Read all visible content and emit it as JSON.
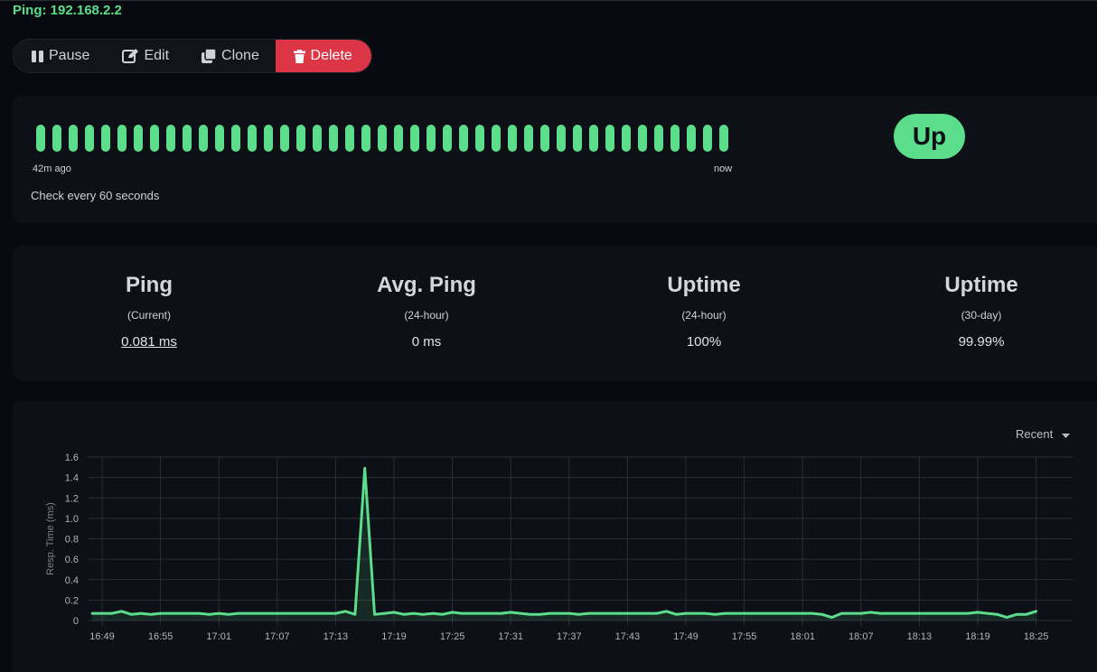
{
  "monitor": {
    "title": "Ping: 192.168.2.2",
    "status": "Up"
  },
  "actions": {
    "pause": "Pause",
    "edit": "Edit",
    "clone": "Clone",
    "delete": "Delete"
  },
  "heartbeat": {
    "count": 43,
    "color": "#5cdd8b",
    "start_label": "42m ago",
    "end_label": "now",
    "interval_text": "Check every 60 seconds"
  },
  "stats": [
    {
      "title": "Ping",
      "sub": "(Current)",
      "value": "0.081 ms"
    },
    {
      "title": "Avg. Ping",
      "sub": "(24-hour)",
      "value": "0 ms"
    },
    {
      "title": "Uptime",
      "sub": "(24-hour)",
      "value": "100%"
    },
    {
      "title": "Uptime",
      "sub": "(30-day)",
      "value": "99.99%"
    }
  ],
  "chart_controls": {
    "period": "Recent"
  },
  "chart_data": {
    "type": "line",
    "ylabel": "Resp. Time (ms)",
    "xlabel": "",
    "ylim": [
      0,
      1.6
    ],
    "yticks": [
      "0",
      "0.2",
      "0.4",
      "0.6",
      "0.8",
      "1.0",
      "1.2",
      "1.4",
      "1.6"
    ],
    "xticks": [
      "16:49",
      "16:55",
      "17:01",
      "17:07",
      "17:13",
      "17:19",
      "17:25",
      "17:31",
      "17:37",
      "17:43",
      "17:49",
      "17:55",
      "18:01",
      "18:07",
      "18:13",
      "18:19",
      "18:25"
    ],
    "grid": true,
    "series": [
      {
        "color": "#5cdd8b",
        "x_minutes": [
          0,
          1,
          2,
          3,
          4,
          5,
          6,
          7,
          8,
          9,
          10,
          11,
          12,
          13,
          14,
          15,
          16,
          17,
          18,
          19,
          20,
          21,
          22,
          23,
          24,
          25,
          26,
          27,
          28,
          29,
          30,
          31,
          32,
          33,
          34,
          35,
          36,
          37,
          38,
          39,
          40,
          41,
          42,
          43,
          44,
          45,
          46,
          47,
          48,
          49,
          50,
          51,
          52,
          53,
          54,
          55,
          56,
          57,
          58,
          59,
          60,
          61,
          62,
          63,
          64,
          65,
          66,
          67,
          68,
          69,
          70,
          71,
          72,
          73,
          74,
          75,
          76,
          77,
          78,
          79,
          80,
          81,
          82,
          83,
          84,
          85,
          86,
          87,
          88,
          89,
          90,
          91,
          92,
          93,
          94,
          95,
          96,
          97
        ],
        "values": [
          0.07,
          0.07,
          0.07,
          0.09,
          0.06,
          0.07,
          0.06,
          0.07,
          0.07,
          0.07,
          0.07,
          0.07,
          0.06,
          0.07,
          0.06,
          0.07,
          0.07,
          0.07,
          0.07,
          0.07,
          0.07,
          0.07,
          0.07,
          0.07,
          0.07,
          0.07,
          0.09,
          0.06,
          1.49,
          0.06,
          0.07,
          0.08,
          0.06,
          0.07,
          0.06,
          0.07,
          0.06,
          0.08,
          0.07,
          0.07,
          0.07,
          0.07,
          0.07,
          0.08,
          0.07,
          0.06,
          0.06,
          0.07,
          0.07,
          0.07,
          0.06,
          0.07,
          0.07,
          0.07,
          0.07,
          0.07,
          0.07,
          0.07,
          0.07,
          0.09,
          0.06,
          0.07,
          0.07,
          0.07,
          0.06,
          0.07,
          0.07,
          0.07,
          0.07,
          0.07,
          0.07,
          0.07,
          0.07,
          0.07,
          0.07,
          0.06,
          0.03,
          0.07,
          0.07,
          0.07,
          0.08,
          0.07,
          0.07,
          0.07,
          0.07,
          0.07,
          0.07,
          0.07,
          0.07,
          0.07,
          0.07,
          0.08,
          0.07,
          0.06,
          0.03,
          0.06,
          0.06,
          0.09
        ]
      }
    ]
  }
}
